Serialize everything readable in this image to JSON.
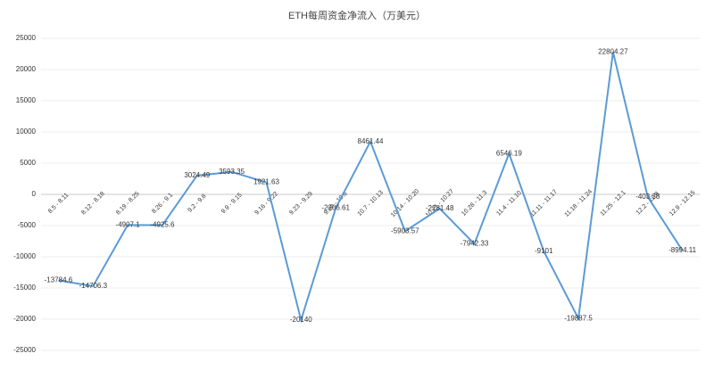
{
  "chart_data": {
    "type": "line",
    "title": "ETH每周资金净流入（万美元）",
    "categories": [
      "8.5 - 8.11",
      "8.12 - 8.18",
      "8.19 - 8.25",
      "8.26 - 9.1",
      "9.2 - 9.8",
      "9.9 - 9.15",
      "9.16 - 9.22",
      "9.23 - 9.29",
      "9.30 - 10.6",
      "10.7 - 10.13",
      "10.14 - 10.20",
      "10.21 - 10.27",
      "10.28 - 11.3",
      "11.4 - 11.10",
      "11.11 - 11.17",
      "11.18 - 11.24",
      "11.25 - 12.1",
      "12.2 - 12.8",
      "12.9 - 12.15"
    ],
    "series": [
      {
        "color": "#5b9bd5",
        "values": [
          -13784.6,
          -14706.3,
          -4907.1,
          -4925.6,
          3024.49,
          3593.35,
          1921.63,
          -20140,
          -2206.61,
          8461.44,
          -5903.57,
          -2281.48,
          -7942.33,
          6546.19,
          -9101,
          -19887.5,
          22804.27,
          -403.38,
          -8994.11
        ]
      }
    ],
    "ylim": [
      -25000,
      25000
    ],
    "yticks": [
      -25000,
      -20000,
      -15000,
      -10000,
      -5000,
      0,
      5000,
      10000,
      15000,
      20000,
      25000
    ],
    "grid": true
  }
}
